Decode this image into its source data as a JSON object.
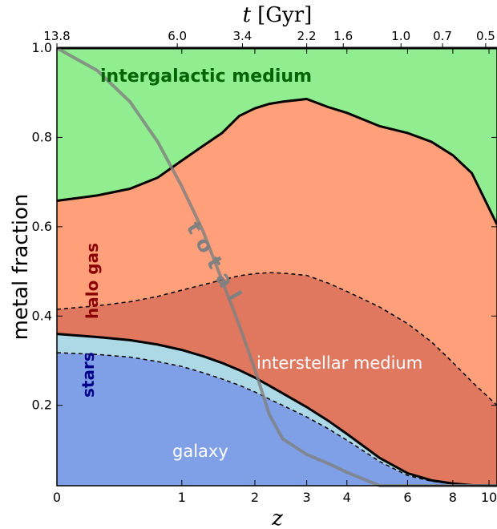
{
  "chart_data": {
    "type": "area",
    "xlabel": "z",
    "ylabel": "metal fraction",
    "top_axis_label_var": "t",
    "top_axis_label_unit": "[Gyr]",
    "xlim": [
      0,
      10.5
    ],
    "ylim": [
      0.02,
      1.0
    ],
    "x_scale": "log(1+z)",
    "x_ticks": [
      0,
      1,
      2,
      3,
      4,
      6,
      8,
      10
    ],
    "x_tick_labels": [
      "0",
      "1",
      "2",
      "3",
      "4",
      "6",
      "8",
      "10"
    ],
    "y_ticks": [
      0.2,
      0.4,
      0.6,
      0.8,
      1.0
    ],
    "y_tick_labels": [
      "0.2",
      "0.4",
      "0.6",
      "0.8",
      "1.0"
    ],
    "top_ticks_z": [
      0,
      0.95,
      1.8,
      3.0,
      3.9,
      5.75,
      7.5,
      9.8
    ],
    "top_tick_labels": [
      "13.8",
      "6.0",
      "3.4",
      "2.2",
      "1.6",
      "1.0",
      "0.7",
      "0.5"
    ],
    "x": [
      0,
      0.25,
      0.5,
      0.75,
      1.0,
      1.25,
      1.5,
      1.75,
      2.0,
      2.25,
      2.5,
      3.0,
      3.5,
      4.0,
      5.0,
      6.0,
      7.0,
      8.0,
      9.0,
      10.5
    ],
    "boundaries": {
      "galaxy_top": [
        0.318,
        0.314,
        0.308,
        0.298,
        0.287,
        0.273,
        0.259,
        0.245,
        0.23,
        0.214,
        0.2,
        0.174,
        0.148,
        0.122,
        0.074,
        0.043,
        0.03,
        0.024,
        0.021,
        0.02
      ],
      "stars_top": [
        0.36,
        0.353,
        0.346,
        0.336,
        0.324,
        0.31,
        0.295,
        0.279,
        0.262,
        0.244,
        0.227,
        0.196,
        0.166,
        0.136,
        0.082,
        0.048,
        0.032,
        0.025,
        0.021,
        0.02
      ],
      "ism_top": [
        0.415,
        0.423,
        0.432,
        0.444,
        0.458,
        0.47,
        0.481,
        0.49,
        0.495,
        0.497,
        0.496,
        0.491,
        0.474,
        0.455,
        0.42,
        0.383,
        0.342,
        0.296,
        0.253,
        0.2
      ],
      "halo_top": [
        0.658,
        0.67,
        0.685,
        0.71,
        0.748,
        0.781,
        0.81,
        0.848,
        0.865,
        0.875,
        0.88,
        0.886,
        0.868,
        0.855,
        0.825,
        0.81,
        0.79,
        0.76,
        0.72,
        0.605
      ],
      "total": [
        1.0,
        0.95,
        0.88,
        0.79,
        0.69,
        0.59,
        0.48,
        0.38,
        0.28,
        0.18,
        0.125,
        0.09,
        0.07,
        0.05,
        0.02,
        0.0,
        0.0,
        0.0,
        0.0,
        0.0
      ]
    },
    "series": [
      {
        "name": "galaxy",
        "color": "#7fa0e6"
      },
      {
        "name": "stars",
        "color": "#add8e6"
      },
      {
        "name": "interstellar medium",
        "color": "#e07860"
      },
      {
        "name": "halo gas",
        "color": "#ffa07a"
      },
      {
        "name": "intergalactic medium",
        "color": "#90ee90"
      }
    ],
    "total_label": "total",
    "total_color": "#808080",
    "grid": false
  }
}
